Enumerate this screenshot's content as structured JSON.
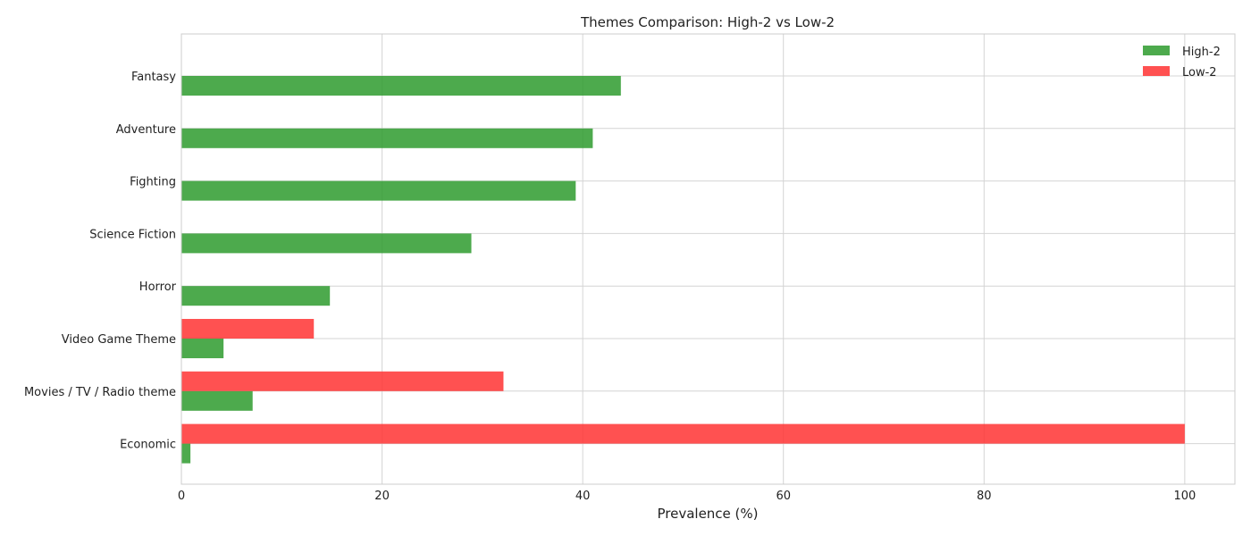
{
  "chart_data": {
    "type": "bar",
    "orientation": "horizontal",
    "title": "Themes Comparison: High-2 vs Low-2",
    "xlabel": "Prevalence (%)",
    "ylabel": "",
    "xlim": [
      0,
      105
    ],
    "xticks": [
      0,
      20,
      40,
      60,
      80,
      100
    ],
    "categories": [
      "Fantasy",
      "Adventure",
      "Fighting",
      "Science Fiction",
      "Horror",
      "Video Game Theme",
      "Movies / TV / Radio theme",
      "Economic"
    ],
    "series": [
      {
        "name": "High-2",
        "color": "#2e9b2e",
        "values": [
          43.8,
          41.0,
          39.3,
          28.9,
          14.8,
          4.2,
          7.1,
          0.9
        ]
      },
      {
        "name": "Low-2",
        "color": "#ff3333",
        "values": [
          0,
          0,
          0,
          0,
          0,
          13.2,
          32.1,
          100.0
        ]
      }
    ],
    "grid": true,
    "legend": "top-right"
  }
}
